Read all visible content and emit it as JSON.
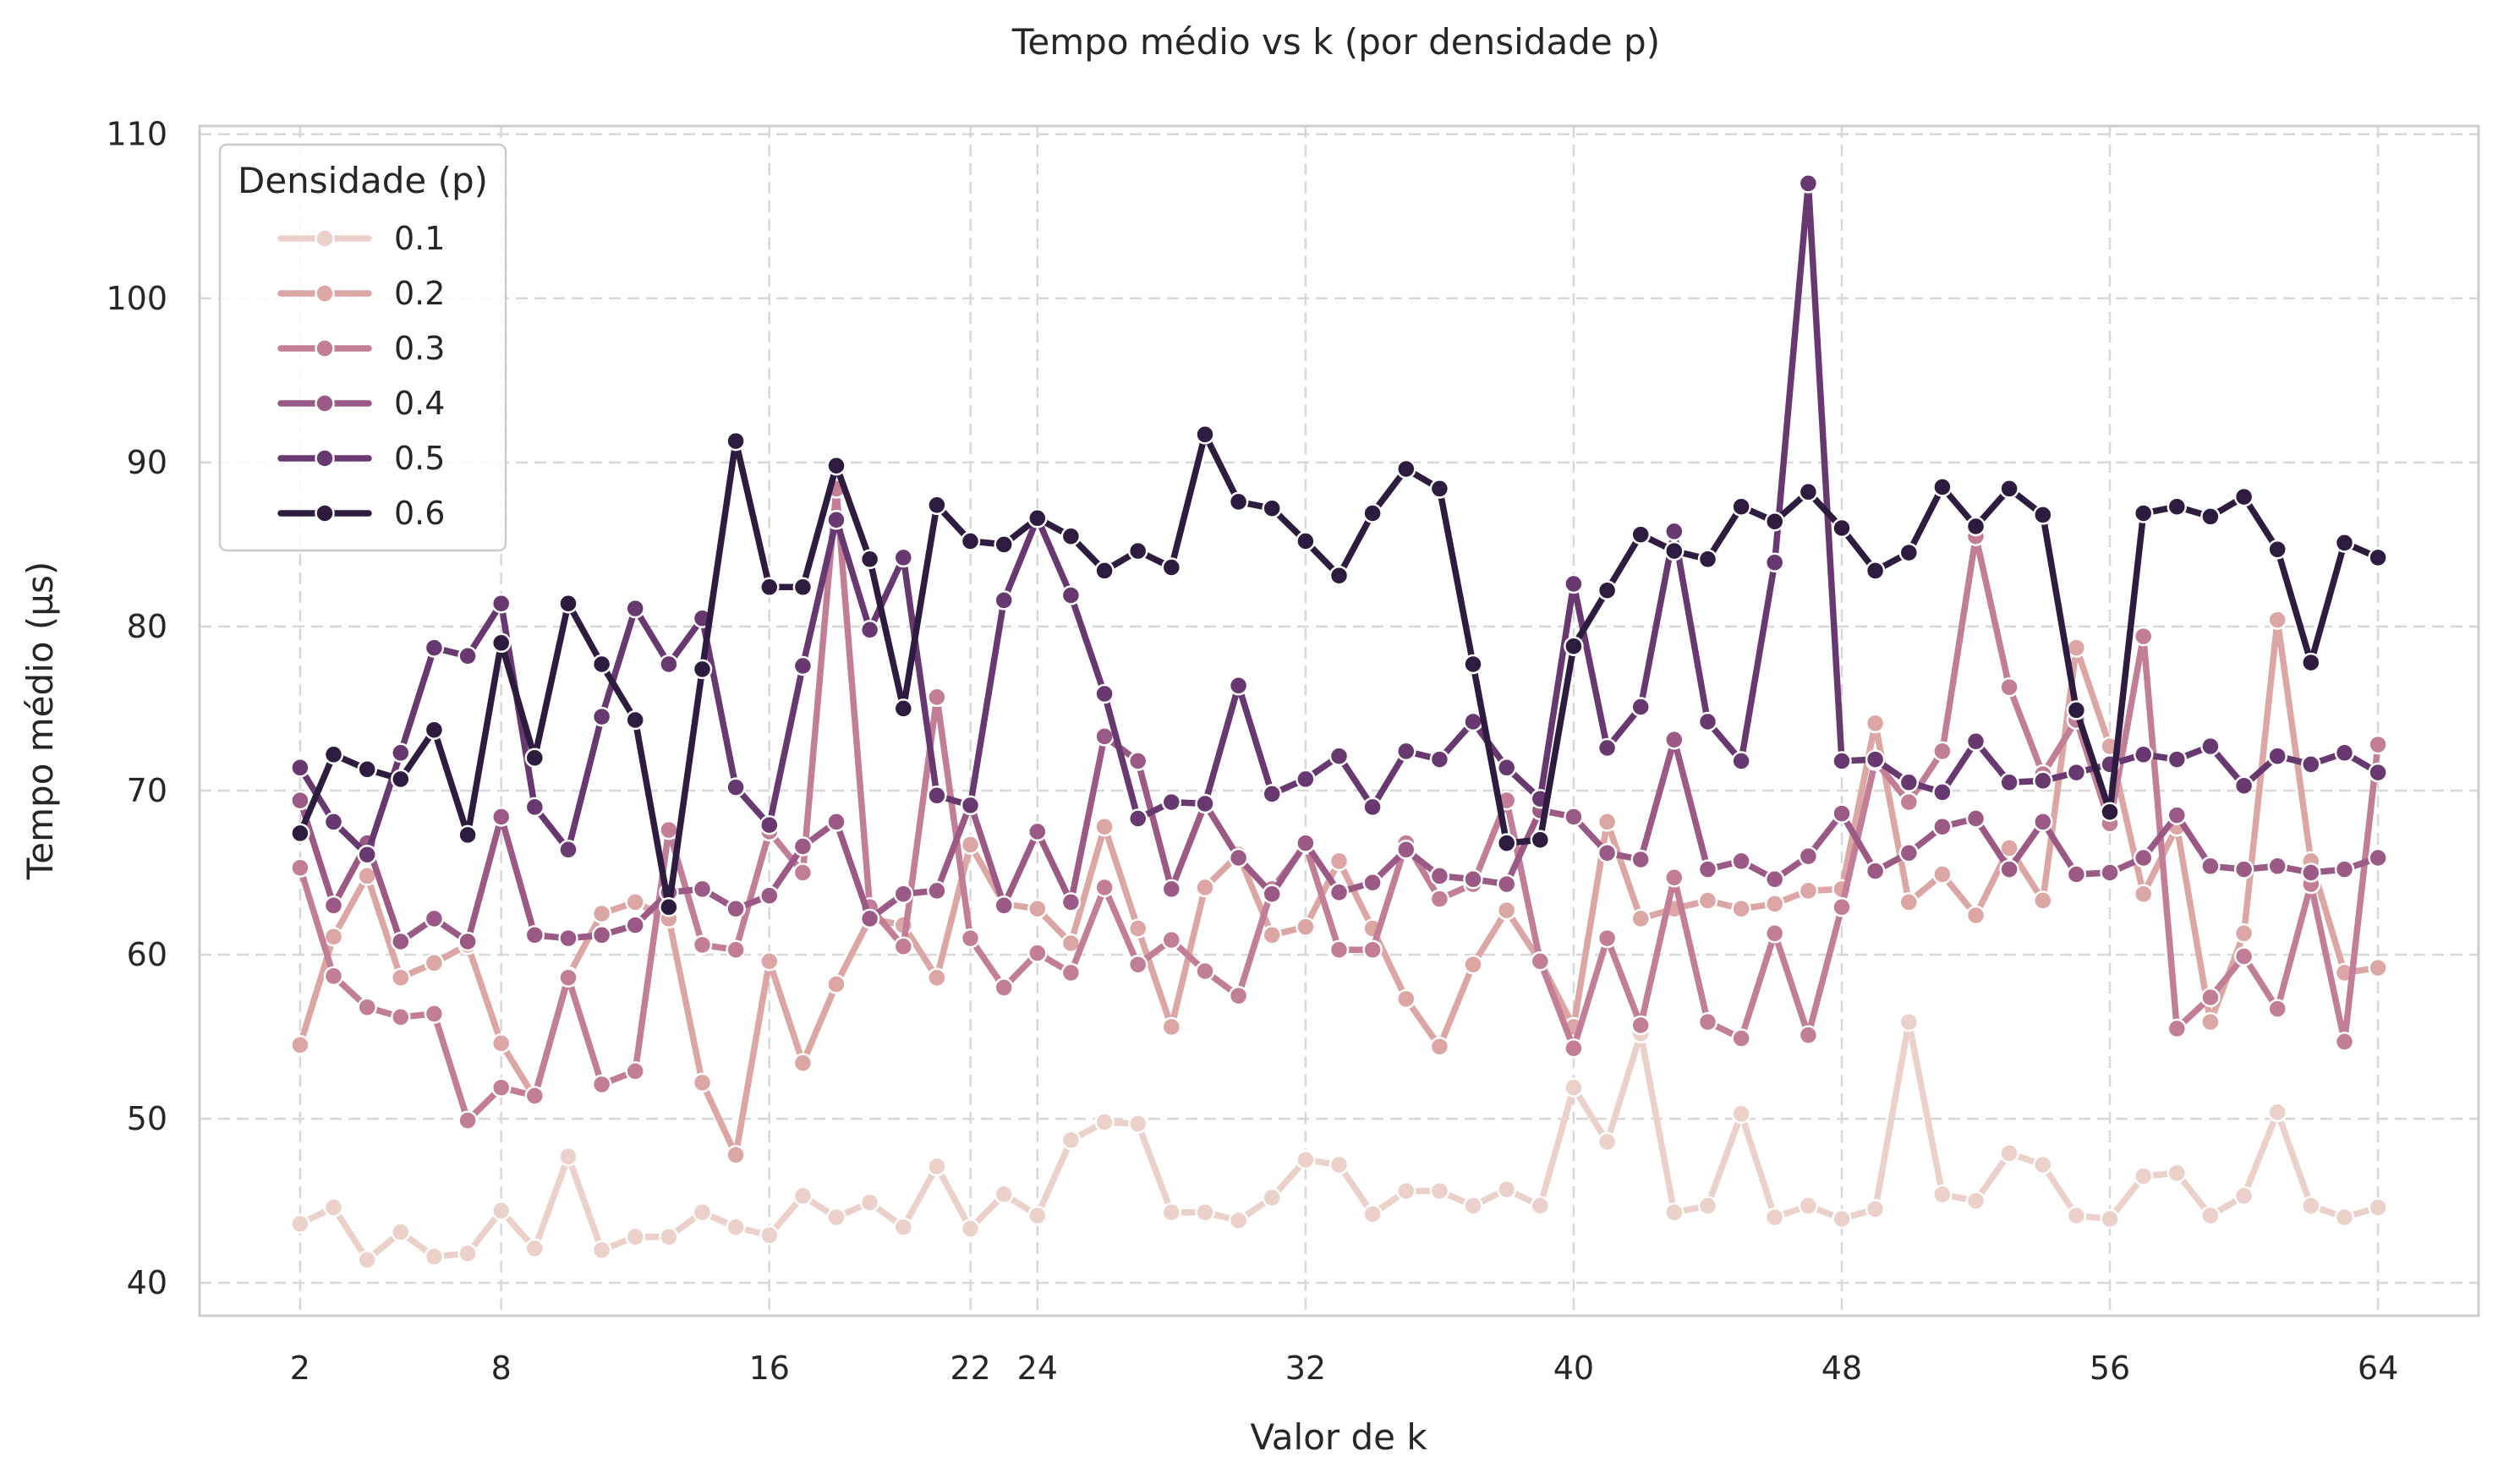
{
  "chart_data": {
    "type": "line",
    "title": "Tempo médio vs k (por densidade p)",
    "xlabel": "Valor de k",
    "ylabel": "Tempo médio (µs)",
    "xticks": [
      2,
      8,
      16,
      22,
      24,
      32,
      40,
      48,
      56,
      64
    ],
    "yticks": [
      40,
      50,
      60,
      70,
      80,
      90,
      100,
      110
    ],
    "xlim": [
      -1,
      67
    ],
    "ylim": [
      38,
      110.5
    ],
    "grid": true,
    "legend_title": "Densidade (p)",
    "legend_position": "top-left",
    "x": [
      2,
      3,
      4,
      5,
      6,
      7,
      8,
      9,
      10,
      11,
      12,
      13,
      14,
      15,
      16,
      17,
      18,
      19,
      20,
      21,
      22,
      23,
      24,
      25,
      26,
      27,
      28,
      29,
      30,
      31,
      32,
      33,
      34,
      35,
      36,
      37,
      38,
      39,
      40,
      41,
      42,
      43,
      44,
      45,
      46,
      47,
      48,
      49,
      50,
      51,
      52,
      53,
      54,
      55,
      56,
      57,
      58,
      59,
      60,
      61,
      62,
      63,
      64
    ],
    "series": [
      {
        "name": "0.1",
        "color": "#ebd1ca",
        "values": [
          43.6,
          44.6,
          41.4,
          43.1,
          41.6,
          41.8,
          44.4,
          42.1,
          47.7,
          42.0,
          42.8,
          42.8,
          44.3,
          43.4,
          42.9,
          45.3,
          44.0,
          44.9,
          43.4,
          47.1,
          43.3,
          45.4,
          44.1,
          48.7,
          49.8,
          49.7,
          44.3,
          44.3,
          43.8,
          45.2,
          47.5,
          47.2,
          44.2,
          45.6,
          45.6,
          44.7,
          45.7,
          44.7,
          51.9,
          48.6,
          55.2,
          44.3,
          44.7,
          50.3,
          44.0,
          44.7,
          43.9,
          44.5,
          55.9,
          45.4,
          45.0,
          47.9,
          47.2,
          44.1,
          43.9,
          46.5,
          46.7,
          44.1,
          45.3,
          50.4,
          44.7,
          44.0,
          44.6
        ]
      },
      {
        "name": "0.2",
        "color": "#dba6a3",
        "values": [
          54.5,
          61.1,
          64.8,
          58.6,
          59.5,
          60.6,
          54.6,
          51.3,
          58.7,
          62.5,
          63.2,
          62.2,
          52.2,
          47.8,
          59.6,
          53.4,
          58.2,
          62.2,
          61.8,
          58.6,
          66.7,
          63.1,
          62.8,
          60.7,
          67.8,
          61.6,
          55.6,
          64.1,
          66.1,
          61.2,
          61.7,
          65.7,
          61.6,
          57.3,
          54.4,
          59.4,
          62.7,
          59.6,
          55.6,
          68.1,
          62.2,
          62.8,
          63.3,
          62.8,
          63.1,
          63.9,
          64.0,
          74.1,
          63.2,
          64.9,
          62.4,
          66.5,
          63.3,
          78.7,
          72.7,
          63.7,
          67.8,
          55.9,
          61.3,
          80.4,
          65.7,
          58.9,
          59.2
        ]
      },
      {
        "name": "0.3",
        "color": "#c37e97",
        "values": [
          65.3,
          58.7,
          56.8,
          56.2,
          56.4,
          49.9,
          51.9,
          51.4,
          58.6,
          52.1,
          52.9,
          67.6,
          60.6,
          60.3,
          67.5,
          65.0,
          88.4,
          62.9,
          60.5,
          75.7,
          61.0,
          58.0,
          60.1,
          58.9,
          64.1,
          59.4,
          60.9,
          59.0,
          57.5,
          64.0,
          66.7,
          60.3,
          60.3,
          66.8,
          63.4,
          64.3,
          69.4,
          59.6,
          54.3,
          61.0,
          55.7,
          64.7,
          55.9,
          54.9,
          61.3,
          55.1,
          62.9,
          71.8,
          69.3,
          72.4,
          85.5,
          76.3,
          71.0,
          74.3,
          68.0,
          79.4,
          55.5,
          57.4,
          59.9,
          56.7,
          64.3,
          54.7,
          72.8
        ]
      },
      {
        "name": "0.4",
        "color": "#9b5a86",
        "values": [
          69.4,
          63.0,
          66.8,
          60.8,
          62.2,
          60.8,
          68.4,
          61.2,
          61.0,
          61.2,
          61.8,
          63.8,
          64.0,
          62.8,
          63.6,
          66.6,
          68.1,
          62.2,
          63.7,
          63.9,
          69.2,
          63.0,
          67.5,
          63.2,
          73.3,
          71.8,
          64.0,
          69.2,
          65.9,
          63.7,
          66.8,
          63.8,
          64.4,
          66.4,
          64.8,
          64.6,
          64.3,
          68.8,
          68.4,
          66.2,
          65.8,
          73.1,
          65.2,
          65.7,
          64.6,
          66.0,
          68.6,
          65.1,
          66.2,
          67.8,
          68.3,
          65.2,
          68.1,
          64.9,
          65.0,
          65.9,
          68.5,
          65.4,
          65.2,
          65.4,
          65.0,
          65.2,
          65.9
        ]
      },
      {
        "name": "0.5",
        "color": "#683970",
        "values": [
          71.4,
          68.1,
          66.1,
          72.3,
          78.7,
          78.2,
          81.4,
          69.0,
          66.4,
          74.5,
          81.1,
          77.7,
          80.5,
          70.2,
          67.9,
          77.6,
          86.5,
          79.8,
          84.2,
          69.7,
          69.1,
          81.6,
          86.6,
          81.9,
          75.9,
          68.3,
          69.3,
          69.2,
          76.4,
          69.8,
          70.7,
          72.1,
          69.0,
          72.4,
          71.9,
          74.2,
          71.4,
          69.5,
          82.6,
          72.6,
          75.1,
          85.8,
          74.2,
          71.8,
          83.9,
          107.0,
          71.8,
          71.9,
          70.5,
          69.9,
          73.0,
          70.5,
          70.6,
          71.1,
          71.6,
          72.2,
          71.9,
          72.7,
          70.3,
          72.1,
          71.6,
          72.3,
          71.1
        ]
      },
      {
        "name": "0.6",
        "color": "#2d1c3f",
        "values": [
          67.4,
          72.2,
          71.3,
          70.7,
          73.7,
          67.3,
          79.0,
          72.0,
          81.4,
          77.7,
          74.3,
          62.9,
          77.4,
          91.3,
          82.4,
          82.4,
          89.8,
          84.1,
          75.0,
          87.4,
          85.2,
          85.0,
          86.6,
          85.5,
          83.4,
          84.6,
          83.6,
          91.7,
          87.6,
          87.2,
          85.2,
          83.1,
          86.9,
          89.6,
          88.4,
          77.7,
          66.8,
          67.0,
          78.8,
          82.2,
          85.6,
          84.6,
          84.1,
          87.3,
          86.4,
          88.2,
          86.0,
          83.4,
          84.5,
          88.5,
          86.1,
          88.4,
          86.8,
          74.9,
          68.7,
          86.9,
          87.3,
          86.7,
          87.9,
          84.7,
          77.8,
          85.1,
          84.2
        ]
      }
    ]
  }
}
